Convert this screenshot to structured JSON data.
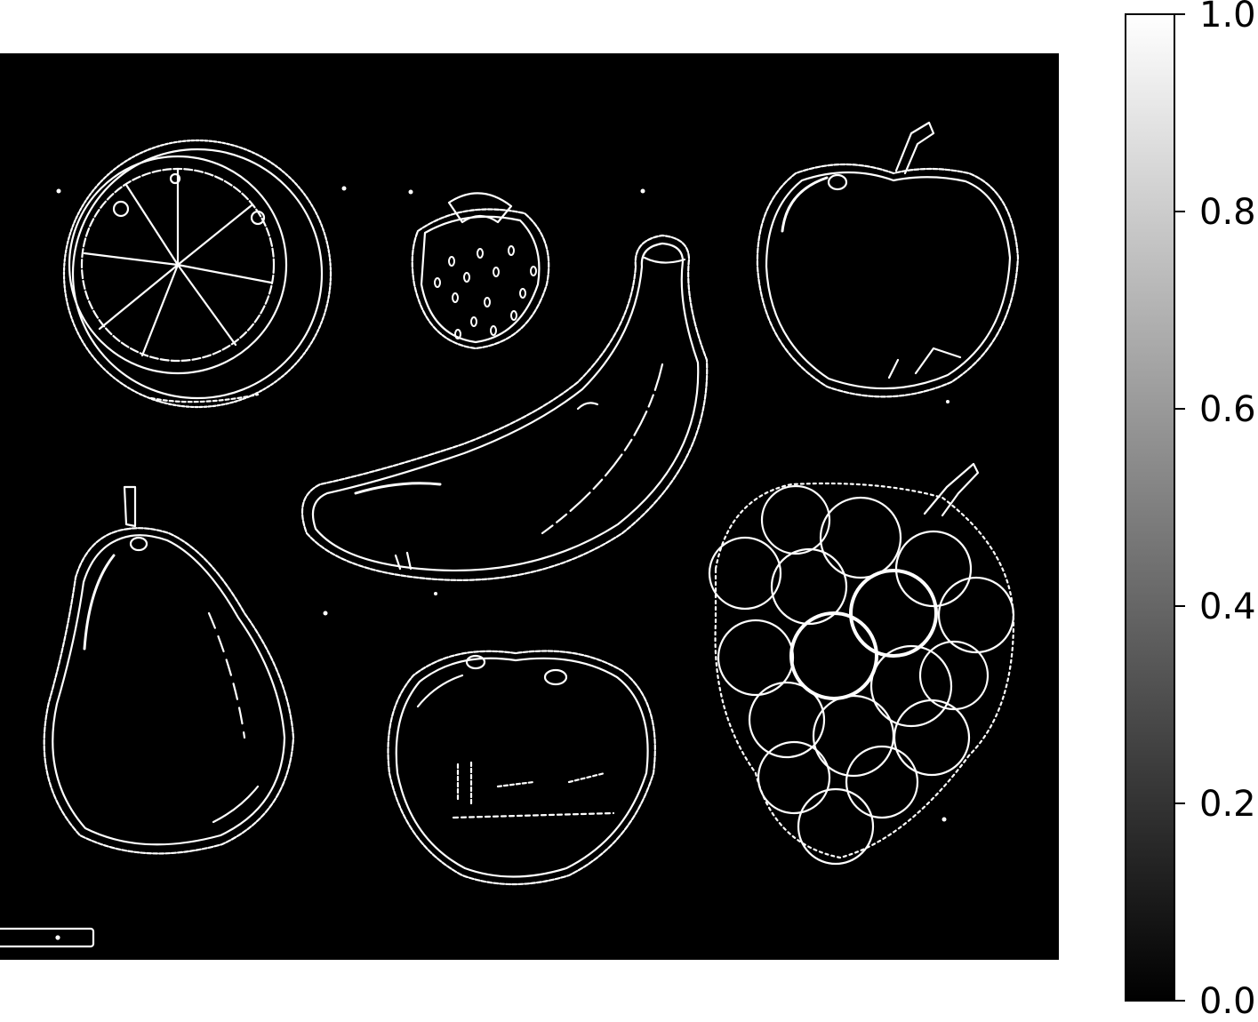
{
  "chart_data": {
    "type": "heatmap",
    "title": "",
    "xlabel": "",
    "ylabel": "",
    "description_free": true,
    "image_content": "binary edge map (white edges on black)",
    "colormap": "gray",
    "colorbar": {
      "range": [
        0.0,
        1.0
      ],
      "ticks": [
        0.0,
        0.2,
        0.4,
        0.6,
        0.8,
        1.0
      ],
      "tick_labels": [
        "0.0",
        "0.2",
        "0.4",
        "0.6",
        "0.8",
        "1.0"
      ],
      "placement": "right"
    },
    "axes_visible": false,
    "grid": false
  },
  "colors": {
    "background": "#ffffff",
    "image_background": "#000000",
    "edge": "#ffffff",
    "axis": "#000000"
  }
}
